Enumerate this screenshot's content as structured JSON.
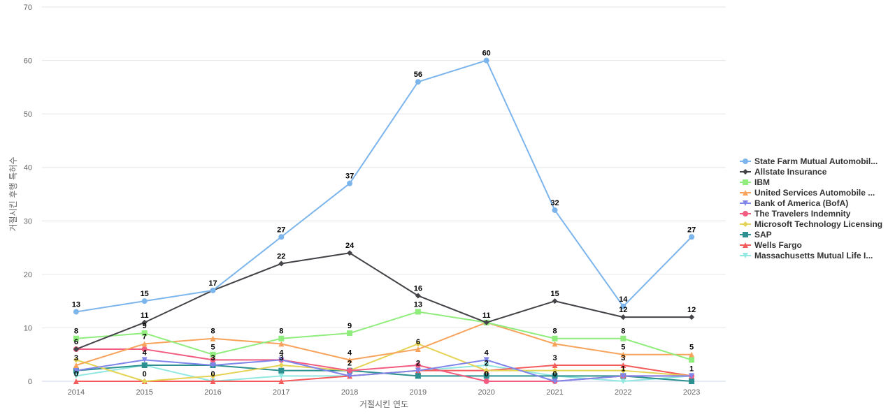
{
  "chart_data": {
    "type": "line",
    "title": "",
    "xlabel": "거절시킨 연도",
    "ylabel": "거절시킨 후행 특허수",
    "ylim": [
      0,
      70
    ],
    "yticks": [
      0,
      10,
      20,
      30,
      40,
      50,
      60,
      70
    ],
    "categories": [
      "2014",
      "2015",
      "2016",
      "2017",
      "2018",
      "2019",
      "2020",
      "2021",
      "2022",
      "2023"
    ],
    "legend_position": "right",
    "series": [
      {
        "name": "State Farm Mutual Automobil...",
        "color": "#7cb5ec",
        "marker": "circle",
        "values": [
          13,
          15,
          17,
          27,
          37,
          56,
          60,
          32,
          14,
          27
        ],
        "labels": [
          true,
          true,
          true,
          true,
          true,
          true,
          true,
          true,
          true,
          true
        ]
      },
      {
        "name": "Allstate Insurance",
        "color": "#434348",
        "marker": "diamond",
        "values": [
          6,
          11,
          17,
          22,
          24,
          16,
          11,
          15,
          12,
          12
        ],
        "labels": [
          true,
          true,
          false,
          true,
          true,
          true,
          true,
          true,
          true,
          true
        ]
      },
      {
        "name": "IBM",
        "color": "#90ed7d",
        "marker": "square",
        "values": [
          8,
          9,
          5,
          8,
          9,
          13,
          11,
          8,
          8,
          4
        ],
        "labels": [
          true,
          true,
          true,
          true,
          true,
          true,
          false,
          true,
          true,
          false
        ]
      },
      {
        "name": "United Services Automobile ...",
        "color": "#f7a35c",
        "marker": "triangle",
        "values": [
          3,
          7,
          8,
          7,
          4,
          6,
          11,
          7,
          5,
          5
        ],
        "labels": [
          true,
          true,
          true,
          false,
          true,
          true,
          false,
          false,
          true,
          true
        ]
      },
      {
        "name": "Bank of America (BofA)",
        "color": "#8085e9",
        "marker": "triangle-down",
        "values": [
          2,
          4,
          3,
          4,
          1,
          2,
          4,
          0,
          1,
          1
        ],
        "labels": [
          false,
          true,
          false,
          true,
          false,
          false,
          true,
          false,
          false,
          false
        ]
      },
      {
        "name": "The Travelers Indemnity",
        "color": "#f15c80",
        "marker": "circle",
        "values": [
          6,
          6,
          4,
          4,
          2,
          3,
          0,
          0,
          1,
          1
        ],
        "labels": [
          false,
          false,
          false,
          false,
          false,
          false,
          true,
          true,
          false,
          false
        ]
      },
      {
        "name": "Microsoft Technology Licensing",
        "color": "#e4d354",
        "marker": "diamond",
        "values": [
          4,
          0,
          1,
          3,
          2,
          7,
          2,
          2,
          2,
          1
        ],
        "labels": [
          false,
          true,
          false,
          true,
          false,
          false,
          false,
          false,
          false,
          false
        ]
      },
      {
        "name": "SAP",
        "color": "#2b908f",
        "marker": "square",
        "values": [
          2,
          3,
          3,
          2,
          2,
          1,
          1,
          1,
          1,
          0
        ],
        "labels": [
          false,
          false,
          true,
          false,
          true,
          false,
          false,
          false,
          true,
          false
        ]
      },
      {
        "name": "Wells Fargo",
        "color": "#f45b5b",
        "marker": "triangle",
        "values": [
          0,
          0,
          0,
          0,
          1,
          2,
          2,
          3,
          3,
          1
        ],
        "labels": [
          true,
          false,
          false,
          false,
          false,
          true,
          true,
          true,
          true,
          true
        ]
      },
      {
        "name": "Massachusetts Mutual Life I...",
        "color": "#91e8e1",
        "marker": "triangle-down",
        "values": [
          1,
          3,
          0,
          1,
          1,
          2,
          3,
          1,
          0,
          1
        ],
        "labels": [
          false,
          false,
          true,
          false,
          false,
          false,
          false,
          false,
          false,
          false
        ]
      }
    ]
  }
}
